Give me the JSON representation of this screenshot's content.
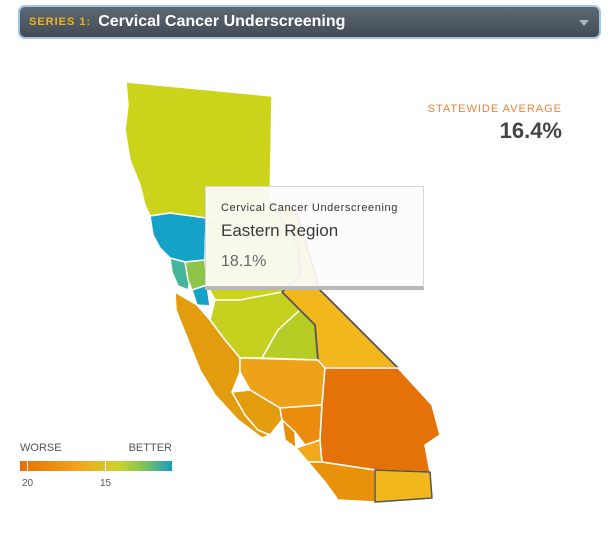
{
  "series_selector": {
    "tag": "SERIES 1:",
    "title": "Cervical Cancer Underscreening",
    "icon": "chevron-down-icon"
  },
  "statewide": {
    "label": "STATEWIDE AVERAGE",
    "value": "16.4%"
  },
  "tooltip": {
    "metric": "Cervical Cancer Underscreening",
    "region": "Eastern Region",
    "value": "18.1%"
  },
  "legend": {
    "worse": "WORSE",
    "better": "BETTER",
    "tick_20": "20",
    "tick_15": "15"
  },
  "colors": {
    "orange": "#e67508",
    "amber": "#f2b21c",
    "yellow_green": "#cdd31a",
    "blue": "#15a2c8",
    "accent": "#e8843a"
  }
}
